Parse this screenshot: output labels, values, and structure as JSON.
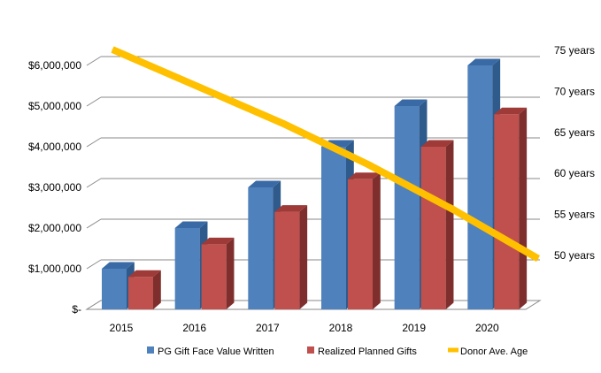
{
  "chart_data": {
    "type": "bar",
    "categories": [
      "2015",
      "2016",
      "2017",
      "2018",
      "2019",
      "2020"
    ],
    "series": [
      {
        "name": "PG Gift Face Value Written",
        "values": [
          1000000,
          2000000,
          3000000,
          4000000,
          5000000,
          6000000
        ],
        "color": "#4F81BD",
        "side_color": "#2E5A8C",
        "top_color": "#3A6AA6",
        "axis": "left",
        "kind": "bar"
      },
      {
        "name": "Realized Planned Gifts",
        "values": [
          800000,
          1600000,
          2400000,
          3200000,
          4000000,
          4800000
        ],
        "color": "#C0504D",
        "side_color": "#7E2F2D",
        "top_color": "#9E3A37",
        "axis": "left",
        "kind": "bar"
      },
      {
        "name": "Donor Ave. Age",
        "values": [
          75,
          70.5,
          66,
          61,
          55.5,
          49.5
        ],
        "color": "#FFC000",
        "axis": "right",
        "kind": "line"
      }
    ],
    "y_left": {
      "ticks": [
        0,
        1000000,
        2000000,
        3000000,
        4000000,
        5000000,
        6000000
      ],
      "tick_labels": [
        "$-",
        "$1,000,000",
        "$2,000,000",
        "$3,000,000",
        "$4,000,000",
        "$5,000,000",
        "$6,000,000"
      ],
      "ylim": [
        0,
        6000000
      ]
    },
    "y_right": {
      "ticks": [
        50,
        55,
        60,
        65,
        70,
        75
      ],
      "tick_labels": [
        "50 years",
        "55 years",
        "60 years",
        "65 years",
        "70 years",
        "75 years"
      ]
    },
    "grid": true,
    "legend_position": "bottom",
    "legend": [
      "PG Gift Face Value Written",
      "Realized Planned Gifts",
      "Donor Ave. Age"
    ]
  }
}
